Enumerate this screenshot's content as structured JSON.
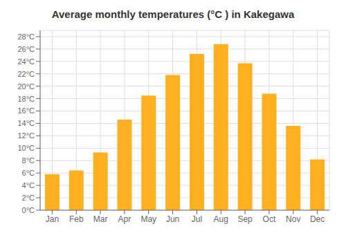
{
  "chart_data": {
    "type": "bar",
    "title": "Average monthly temperatures (°C ) in Kakegawa",
    "categories": [
      "Jan",
      "Feb",
      "Mar",
      "Apr",
      "May",
      "Jun",
      "Jul",
      "Aug",
      "Sep",
      "Oct",
      "Nov",
      "Dec"
    ],
    "values": [
      5.8,
      6.4,
      9.3,
      14.6,
      18.5,
      21.8,
      25.2,
      26.8,
      23.7,
      18.8,
      13.6,
      8.2
    ],
    "color": "#FFB020",
    "ylim": [
      0,
      29
    ],
    "yticks": [
      {
        "value": 0,
        "label": "0°C"
      },
      {
        "value": 2,
        "label": "2°C"
      },
      {
        "value": 4,
        "label": "4°C"
      },
      {
        "value": 6,
        "label": "6°C"
      },
      {
        "value": 8,
        "label": "8°C"
      },
      {
        "value": 10,
        "label": "10°C"
      },
      {
        "value": 12,
        "label": "12°C"
      },
      {
        "value": 14,
        "label": "14°C"
      },
      {
        "value": 16,
        "label": "16°C"
      },
      {
        "value": 18,
        "label": "18°C"
      },
      {
        "value": 20,
        "label": "20°C"
      },
      {
        "value": 22,
        "label": "22°C"
      },
      {
        "value": 24,
        "label": "24°C"
      },
      {
        "value": 26,
        "label": "26°C"
      },
      {
        "value": 28,
        "label": "28°C"
      }
    ],
    "grid": true
  }
}
